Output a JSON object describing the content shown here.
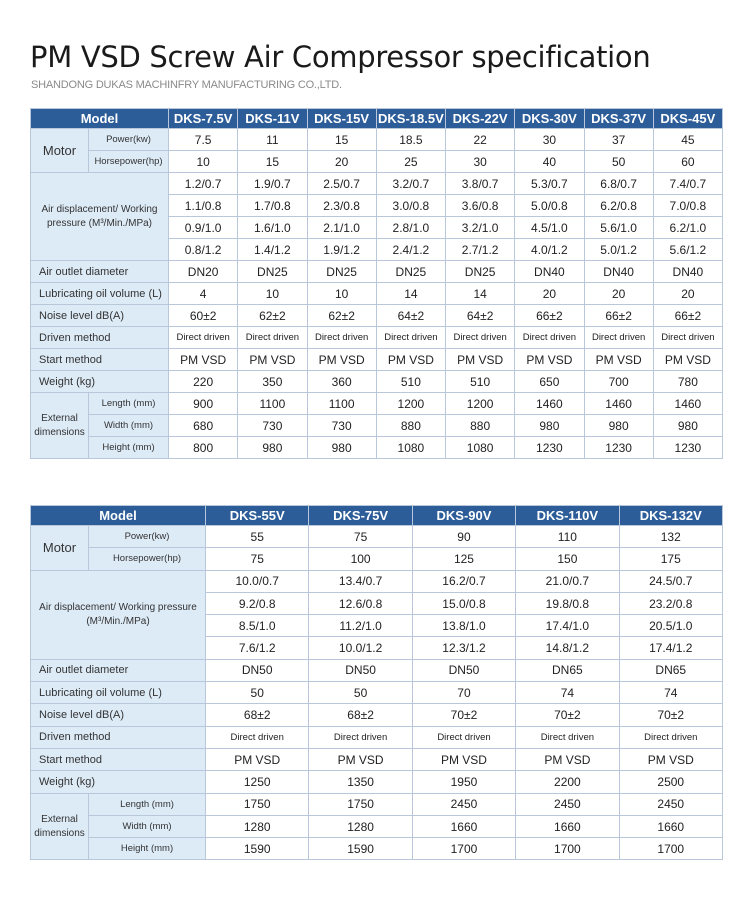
{
  "header": {
    "title": "PM VSD Screw Air Compressor specification",
    "subtitle": "SHANDONG DUKAS MACHINFRY MANUFACTURING CO.,LTD."
  },
  "tables": [
    {
      "model_label": "Model",
      "models": [
        "DKS-7.5V",
        "DKS-11V",
        "DKS-15V",
        "DKS-18.5V",
        "DKS-22V",
        "DKS-30V",
        "DKS-37V",
        "DKS-45V"
      ],
      "groups": [
        {
          "label": "Motor",
          "rows": [
            {
              "label": "Power(kw)",
              "values": [
                "7.5",
                "11",
                "15",
                "18.5",
                "22",
                "30",
                "37",
                "45"
              ]
            },
            {
              "label": "Horsepower(hp)",
              "values": [
                "10",
                "15",
                "20",
                "25",
                "30",
                "40",
                "50",
                "60"
              ]
            }
          ]
        },
        {
          "label": "Air displacement/ Working pressure (M³/Min./MPa)",
          "rows": [
            {
              "values": [
                "1.2/0.7",
                "1.9/0.7",
                "2.5/0.7",
                "3.2/0.7",
                "3.8/0.7",
                "5.3/0.7",
                "6.8/0.7",
                "7.4/0.7"
              ]
            },
            {
              "values": [
                "1.1/0.8",
                "1.7/0.8",
                "2.3/0.8",
                "3.0/0.8",
                "3.6/0.8",
                "5.0/0.8",
                "6.2/0.8",
                "7.0/0.8"
              ]
            },
            {
              "values": [
                "0.9/1.0",
                "1.6/1.0",
                "2.1/1.0",
                "2.8/1.0",
                "3.2/1.0",
                "4.5/1.0",
                "5.6/1.0",
                "6.2/1.0"
              ]
            },
            {
              "values": [
                "0.8/1.2",
                "1.4/1.2",
                "1.9/1.2",
                "2.4/1.2",
                "2.7/1.2",
                "4.0/1.2",
                "5.0/1.2",
                "5.6/1.2"
              ]
            }
          ]
        },
        {
          "label": "Air outlet diameter",
          "values": [
            "DN20",
            "DN25",
            "DN25",
            "DN25",
            "DN25",
            "DN40",
            "DN40",
            "DN40"
          ]
        },
        {
          "label": "Lubricating oil volume (L)",
          "values": [
            "4",
            "10",
            "10",
            "14",
            "14",
            "20",
            "20",
            "20"
          ]
        },
        {
          "label": "Noise level dB(A)",
          "values": [
            "60±2",
            "62±2",
            "62±2",
            "64±2",
            "64±2",
            "66±2",
            "66±2",
            "66±2"
          ]
        },
        {
          "label": "Driven method",
          "values": [
            "Direct driven",
            "Direct driven",
            "Direct driven",
            "Direct driven",
            "Direct driven",
            "Direct driven",
            "Direct driven",
            "Direct driven"
          ]
        },
        {
          "label": "Start method",
          "values": [
            "PM VSD",
            "PM VSD",
            "PM VSD",
            "PM VSD",
            "PM VSD",
            "PM VSD",
            "PM VSD",
            "PM VSD"
          ]
        },
        {
          "label": "Weight (kg)",
          "values": [
            "220",
            "350",
            "360",
            "510",
            "510",
            "650",
            "700",
            "780"
          ]
        },
        {
          "label": "External dimensions",
          "rows": [
            {
              "label": "Length (mm)",
              "values": [
                "900",
                "1100",
                "1100",
                "1200",
                "1200",
                "1460",
                "1460",
                "1460"
              ]
            },
            {
              "label": "Width (mm)",
              "values": [
                "680",
                "730",
                "730",
                "880",
                "880",
                "980",
                "980",
                "980"
              ]
            },
            {
              "label": "Height (mm)",
              "values": [
                "800",
                "980",
                "980",
                "1080",
                "1080",
                "1230",
                "1230",
                "1230"
              ]
            }
          ]
        }
      ]
    },
    {
      "model_label": "Model",
      "models": [
        "DKS-55V",
        "DKS-75V",
        "DKS-90V",
        "DKS-110V",
        "DKS-132V"
      ],
      "groups": [
        {
          "label": "Motor",
          "rows": [
            {
              "label": "Power(kw)",
              "values": [
                "55",
                "75",
                "90",
                "110",
                "132"
              ]
            },
            {
              "label": "Horsepower(hp)",
              "values": [
                "75",
                "100",
                "125",
                "150",
                "175"
              ]
            }
          ]
        },
        {
          "label": "Air displacement/ Working pressure (M³/Min./MPa)",
          "rows": [
            {
              "values": [
                "10.0/0.7",
                "13.4/0.7",
                "16.2/0.7",
                "21.0/0.7",
                "24.5/0.7"
              ]
            },
            {
              "values": [
                "9.2/0.8",
                "12.6/0.8",
                "15.0/0.8",
                "19.8/0.8",
                "23.2/0.8"
              ]
            },
            {
              "values": [
                "8.5/1.0",
                "11.2/1.0",
                "13.8/1.0",
                "17.4/1.0",
                "20.5/1.0"
              ]
            },
            {
              "values": [
                "7.6/1.2",
                "10.0/1.2",
                "12.3/1.2",
                "14.8/1.2",
                "17.4/1.2"
              ]
            }
          ]
        },
        {
          "label": "Air outlet diameter",
          "values": [
            "DN50",
            "DN50",
            "DN50",
            "DN65",
            "DN65"
          ]
        },
        {
          "label": "Lubricating oil volume (L)",
          "values": [
            "50",
            "50",
            "70",
            "74",
            "74"
          ]
        },
        {
          "label": "Noise level dB(A)",
          "values": [
            "68±2",
            "68±2",
            "70±2",
            "70±2",
            "70±2"
          ]
        },
        {
          "label": "Driven method",
          "values": [
            "Direct driven",
            "Direct driven",
            "Direct driven",
            "Direct driven",
            "Direct driven"
          ]
        },
        {
          "label": "Start method",
          "values": [
            "PM VSD",
            "PM VSD",
            "PM VSD",
            "PM VSD",
            "PM VSD"
          ]
        },
        {
          "label": "Weight (kg)",
          "values": [
            "1250",
            "1350",
            "1950",
            "2200",
            "2500"
          ]
        },
        {
          "label": "External dimensions",
          "rows": [
            {
              "label": "Length (mm)",
              "values": [
                "1750",
                "1750",
                "2450",
                "2450",
                "2450"
              ]
            },
            {
              "label": "Width (mm)",
              "values": [
                "1280",
                "1280",
                "1660",
                "1660",
                "1660"
              ]
            },
            {
              "label": "Height (mm)",
              "values": [
                "1590",
                "1590",
                "1700",
                "1700",
                "1700"
              ]
            }
          ]
        }
      ]
    }
  ]
}
